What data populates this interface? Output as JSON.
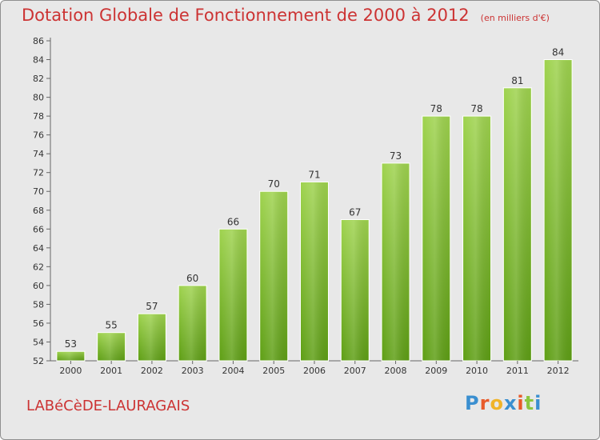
{
  "header": {
    "title": "Dotation Globale de Fonctionnement de 2000 à 2012",
    "subtitle": "(en milliers d'€)"
  },
  "footer": {
    "commune": "LABéCèDE-LAURAGAIS",
    "logo_text": "Proxiti"
  },
  "colors": {
    "title": "#cc3333",
    "bar_light": "#9fd34f",
    "bar_dark": "#5f9f16",
    "background": "#e8e8e8",
    "logo": [
      "#3a8fd0",
      "#e85a2a",
      "#f0b428",
      "#3a8fd0",
      "#e85a2a",
      "#8cc63f",
      "#3a8fd0"
    ]
  },
  "chart_data": {
    "type": "bar",
    "categories": [
      "2000",
      "2001",
      "2002",
      "2003",
      "2004",
      "2005",
      "2006",
      "2007",
      "2008",
      "2009",
      "2010",
      "2011",
      "2012"
    ],
    "values": [
      53,
      55,
      57,
      60,
      66,
      70,
      71,
      67,
      73,
      78,
      78,
      81,
      84
    ],
    "title": "Dotation Globale de Fonctionnement de 2000 à 2012",
    "subtitle": "(en milliers d'€)",
    "ylim": [
      52,
      86
    ],
    "ytick_step": 2,
    "grid": false,
    "data_labels": true
  }
}
